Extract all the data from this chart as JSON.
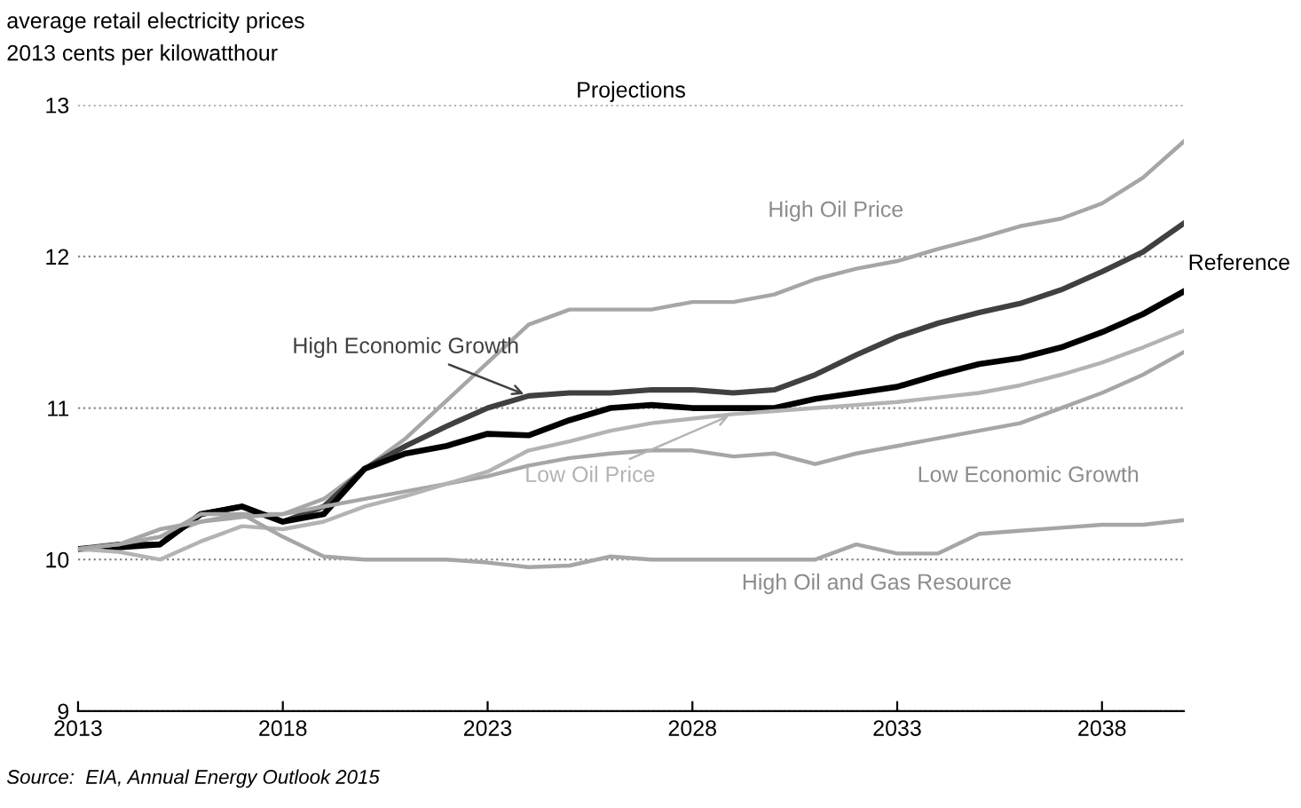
{
  "chart_data": {
    "type": "line",
    "title": "average retail electricity prices",
    "subtitle": "2013 cents per kilowatthour",
    "x": [
      2013,
      2014,
      2015,
      2016,
      2017,
      2018,
      2019,
      2020,
      2021,
      2022,
      2023,
      2024,
      2025,
      2026,
      2027,
      2028,
      2029,
      2030,
      2031,
      2032,
      2033,
      2034,
      2035,
      2036,
      2037,
      2038,
      2039,
      2040
    ],
    "series": [
      {
        "name": "High Oil Price",
        "color": "#a6a6a6",
        "values": [
          10.07,
          10.1,
          10.15,
          10.25,
          10.3,
          10.3,
          10.4,
          10.6,
          10.8,
          11.05,
          11.3,
          11.55,
          11.65,
          11.65,
          11.65,
          11.7,
          11.7,
          11.75,
          11.85,
          11.92,
          11.97,
          12.05,
          12.12,
          12.2,
          12.25,
          12.35,
          12.52,
          12.76
        ]
      },
      {
        "name": "High Economic Growth",
        "color": "#404040",
        "values": [
          10.07,
          10.1,
          10.1,
          10.3,
          10.35,
          10.25,
          10.35,
          10.6,
          10.75,
          10.88,
          11.0,
          11.08,
          11.1,
          11.1,
          11.12,
          11.12,
          11.1,
          11.12,
          11.22,
          11.35,
          11.47,
          11.56,
          11.63,
          11.69,
          11.78,
          11.9,
          12.03,
          12.22
        ]
      },
      {
        "name": "Reference",
        "color": "#000000",
        "values": [
          10.07,
          10.08,
          10.1,
          10.3,
          10.35,
          10.25,
          10.3,
          10.6,
          10.7,
          10.75,
          10.83,
          10.82,
          10.92,
          11.0,
          11.02,
          11.0,
          11.0,
          11.0,
          11.06,
          11.1,
          11.14,
          11.22,
          11.29,
          11.33,
          11.4,
          11.5,
          11.62,
          11.77
        ]
      },
      {
        "name": "Low Economic Growth",
        "color": "#a6a6a6",
        "values": [
          10.07,
          10.1,
          10.2,
          10.25,
          10.28,
          10.3,
          10.35,
          10.4,
          10.45,
          10.5,
          10.55,
          10.62,
          10.67,
          10.7,
          10.72,
          10.72,
          10.68,
          10.7,
          10.63,
          10.7,
          10.75,
          10.8,
          10.85,
          10.9,
          11.0,
          11.1,
          11.22,
          11.37
        ]
      },
      {
        "name": "Low Oil Price",
        "color": "#b3b3b3",
        "values": [
          10.07,
          10.05,
          10.0,
          10.12,
          10.22,
          10.2,
          10.25,
          10.35,
          10.42,
          10.5,
          10.58,
          10.72,
          10.78,
          10.85,
          10.9,
          10.93,
          10.96,
          10.98,
          11.0,
          11.02,
          11.04,
          11.07,
          11.1,
          11.15,
          11.22,
          11.3,
          11.4,
          11.51
        ]
      },
      {
        "name": "High Oil and Gas Resource",
        "color": "#a6a6a6",
        "values": [
          10.07,
          10.1,
          10.15,
          10.3,
          10.3,
          10.15,
          10.02,
          10.0,
          10.0,
          10.0,
          9.98,
          9.95,
          9.96,
          10.02,
          10.0,
          10.0,
          10.0,
          10.0,
          10.0,
          10.1,
          10.04,
          10.04,
          10.17,
          10.19,
          10.21,
          10.23,
          10.23,
          10.26
        ]
      }
    ],
    "xlim": [
      2013,
      2040
    ],
    "ylim": [
      9,
      13
    ],
    "xticks": [
      2013,
      2018,
      2023,
      2028,
      2033,
      2038
    ],
    "yticks": [
      9,
      10,
      11,
      12,
      13
    ],
    "grid": "y",
    "legend": false,
    "line_style": "solid",
    "marker": "none",
    "annotations": [
      "Projections",
      "Source:  EIA, Annual Energy Outlook 2015"
    ]
  }
}
